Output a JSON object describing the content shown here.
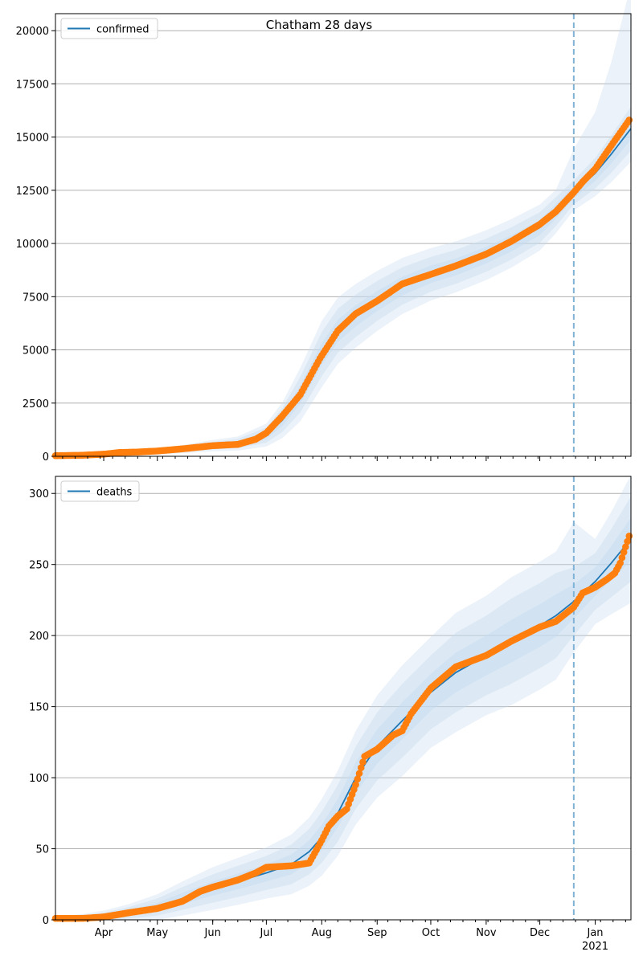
{
  "figure": {
    "title": "Chatham 28 days"
  },
  "colors": {
    "fit_line": "#1f77b4",
    "observed": "#ff7f0e",
    "band": "#c6dbef",
    "grid": "#b0b0b0",
    "forecast_line": "#7fb2d6"
  },
  "x_axis": {
    "month_labels": [
      "Apr",
      "May",
      "Jun",
      "Jul",
      "Aug",
      "Sep",
      "Oct",
      "Nov",
      "Dec",
      "Jan"
    ],
    "month_dates": [
      "2020-04-01",
      "2020-05-01",
      "2020-06-01",
      "2020-07-01",
      "2020-08-01",
      "2020-09-01",
      "2020-10-01",
      "2020-11-01",
      "2020-12-01",
      "2021-01-01"
    ],
    "year_label": "2021",
    "xlim": [
      "2020-03-05",
      "2021-01-21"
    ],
    "forecast_start": "2020-12-20"
  },
  "chart_data": [
    {
      "type": "line",
      "legend": "confirmed",
      "legend_position": "top-left",
      "ylim": [
        0,
        20800
      ],
      "yticks": [
        0,
        2500,
        5000,
        7500,
        10000,
        12500,
        15000,
        17500,
        20000
      ],
      "ytick_labels": [
        "0",
        "2500",
        "5000",
        "7500",
        "10000",
        "12500",
        "15000",
        "17500",
        "20000"
      ],
      "grid": "y",
      "fit": {
        "x": [
          "2020-03-05",
          "2020-04-01",
          "2020-05-01",
          "2020-06-01",
          "2020-06-15",
          "2020-07-01",
          "2020-07-10",
          "2020-07-20",
          "2020-08-01",
          "2020-08-10",
          "2020-08-20",
          "2020-09-01",
          "2020-09-15",
          "2020-10-01",
          "2020-10-15",
          "2020-11-01",
          "2020-11-15",
          "2020-12-01",
          "2020-12-10",
          "2020-12-20",
          "2021-01-01",
          "2021-01-10",
          "2021-01-21"
        ],
        "y": [
          20,
          40,
          200,
          500,
          600,
          1000,
          1700,
          2900,
          4800,
          5900,
          6600,
          7300,
          8000,
          8550,
          8900,
          9450,
          10000,
          10750,
          11500,
          12400,
          13300,
          14200,
          15400
        ],
        "band_inner_half": [
          0,
          10,
          40,
          90,
          110,
          180,
          280,
          420,
          520,
          520,
          500,
          470,
          440,
          410,
          400,
          390,
          380,
          360,
          340,
          280,
          360,
          440,
          520
        ],
        "band_mid_half": [
          0,
          20,
          80,
          180,
          220,
          360,
          560,
          840,
          1040,
          1040,
          1000,
          940,
          880,
          820,
          800,
          780,
          760,
          720,
          680,
          560,
          720,
          880,
          1040
        ],
        "band_outer_half": [
          0,
          30,
          120,
          270,
          330,
          540,
          840,
          1260,
          1560,
          1560,
          1500,
          1410,
          1320,
          1230,
          1200,
          1170,
          1140,
          1080,
          1020,
          840,
          1080,
          1320,
          1560
        ],
        "band_upper_extra": [
          0,
          0,
          0,
          0,
          0,
          0,
          0,
          0,
          0,
          0,
          0,
          0,
          0,
          0,
          0,
          0,
          0,
          0,
          0,
          1200,
          1800,
          3000,
          5200
        ]
      },
      "observed": {
        "x": [
          "2020-03-05",
          "2020-03-20",
          "2020-04-01",
          "2020-04-10",
          "2020-04-20",
          "2020-05-01",
          "2020-05-15",
          "2020-06-01",
          "2020-06-15",
          "2020-06-25",
          "2020-07-01",
          "2020-07-10",
          "2020-07-20",
          "2020-07-31",
          "2020-08-10",
          "2020-08-20",
          "2020-09-01",
          "2020-09-15",
          "2020-10-01",
          "2020-10-15",
          "2020-11-01",
          "2020-11-15",
          "2020-12-01",
          "2020-12-10",
          "2020-12-20",
          "2020-12-25",
          "2021-01-01",
          "2021-01-10",
          "2021-01-15",
          "2021-01-20"
        ],
        "y": [
          30,
          50,
          100,
          180,
          200,
          250,
          350,
          500,
          560,
          800,
          1100,
          1900,
          2900,
          4600,
          5900,
          6700,
          7300,
          8100,
          8550,
          8950,
          9500,
          10100,
          10900,
          11500,
          12400,
          12900,
          13500,
          14600,
          15200,
          15800
        ]
      }
    },
    {
      "type": "line",
      "legend": "deaths",
      "legend_position": "top-left",
      "ylim": [
        0,
        312
      ],
      "yticks": [
        0,
        50,
        100,
        150,
        200,
        250,
        300
      ],
      "ytick_labels": [
        "0",
        "50",
        "100",
        "150",
        "200",
        "250",
        "300"
      ],
      "grid": "y",
      "fit": {
        "x": [
          "2020-03-05",
          "2020-03-20",
          "2020-04-01",
          "2020-04-15",
          "2020-05-01",
          "2020-05-15",
          "2020-06-01",
          "2020-06-15",
          "2020-07-01",
          "2020-07-15",
          "2020-07-25",
          "2020-08-01",
          "2020-08-10",
          "2020-08-20",
          "2020-09-01",
          "2020-09-15",
          "2020-10-01",
          "2020-10-15",
          "2020-11-01",
          "2020-11-15",
          "2020-12-01",
          "2020-12-10",
          "2020-12-20",
          "2021-01-01",
          "2021-01-10",
          "2021-01-21"
        ],
        "y": [
          0.5,
          1,
          2,
          5,
          9,
          15,
          22,
          27,
          33,
          39,
          48,
          58,
          75,
          100,
          122,
          140,
          160,
          174,
          186,
          196,
          207,
          214,
          224,
          238,
          251,
          268
        ],
        "band_inner_half": [
          0.5,
          1,
          1.5,
          2,
          3,
          4,
          5,
          5.5,
          6,
          7,
          8,
          9,
          10,
          11,
          12,
          13,
          13,
          14,
          14,
          15,
          15,
          15,
          12,
          10,
          12,
          15
        ],
        "band_mid_half": [
          1,
          2,
          3,
          4,
          6,
          8,
          10,
          11,
          12,
          14,
          16,
          18,
          20,
          22,
          24,
          26,
          26,
          28,
          28,
          30,
          30,
          30,
          24,
          20,
          24,
          30
        ],
        "band_outer_half": [
          1.5,
          3,
          4.5,
          6,
          9,
          12,
          15,
          16.5,
          18,
          21,
          24,
          27,
          30,
          33,
          36,
          39,
          39,
          42,
          42,
          45,
          45,
          45,
          36,
          30,
          36,
          45
        ],
        "band_upper_extra": [
          0,
          0,
          0,
          0,
          0,
          0,
          0,
          0,
          0,
          0,
          0,
          0,
          0,
          0,
          0,
          0,
          0,
          0,
          0,
          0,
          0,
          0,
          20,
          0,
          0,
          0
        ]
      },
      "observed": {
        "x": [
          "2020-03-05",
          "2020-03-20",
          "2020-04-01",
          "2020-04-15",
          "2020-05-01",
          "2020-05-15",
          "2020-05-25",
          "2020-06-01",
          "2020-06-15",
          "2020-06-25",
          "2020-07-01",
          "2020-07-15",
          "2020-07-25",
          "2020-08-01",
          "2020-08-05",
          "2020-08-10",
          "2020-08-15",
          "2020-08-20",
          "2020-08-25",
          "2020-09-01",
          "2020-09-10",
          "2020-09-15",
          "2020-09-20",
          "2020-10-01",
          "2020-10-15",
          "2020-11-01",
          "2020-11-15",
          "2020-12-01",
          "2020-12-10",
          "2020-12-20",
          "2020-12-25",
          "2021-01-01",
          "2021-01-08",
          "2021-01-12",
          "2021-01-15",
          "2021-01-20"
        ],
        "y": [
          1,
          1,
          2,
          5,
          8,
          13,
          20,
          23,
          28,
          33,
          37,
          38,
          40,
          56,
          66,
          73,
          78,
          95,
          115,
          120,
          130,
          133,
          145,
          163,
          178,
          186,
          196,
          206,
          210,
          220,
          230,
          234,
          240,
          244,
          251,
          270
        ]
      }
    }
  ]
}
